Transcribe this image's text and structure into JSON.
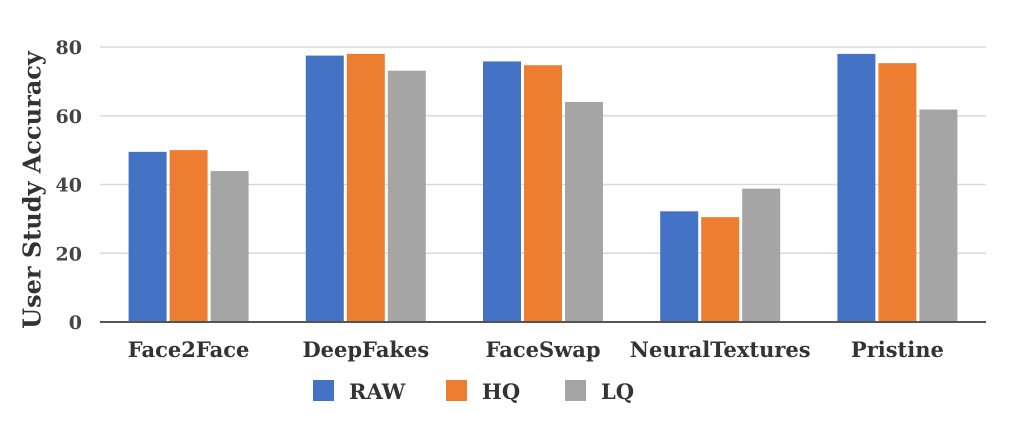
{
  "chart_data": {
    "type": "bar",
    "title": "",
    "xlabel": "",
    "ylabel": "User Study Accuracy",
    "categories": [
      "Face2Face",
      "DeepFakes",
      "FaceSwap",
      "NeuralTextures",
      "Pristine"
    ],
    "series": [
      {
        "name": "RAW",
        "color": "#4472c4",
        "values": [
          49.5,
          77.5,
          75.8,
          32.2,
          78.0
        ]
      },
      {
        "name": "HQ",
        "color": "#ed7d31",
        "values": [
          50.0,
          78.0,
          74.7,
          30.5,
          75.3
        ]
      },
      {
        "name": "LQ",
        "color": "#a5a5a5",
        "values": [
          43.9,
          73.1,
          64.0,
          38.8,
          61.8
        ]
      }
    ],
    "ylim": [
      0,
      80
    ],
    "yticks": [
      "0",
      "20",
      "40",
      "60",
      "80"
    ],
    "grid": true,
    "legend_position": "bottom"
  }
}
